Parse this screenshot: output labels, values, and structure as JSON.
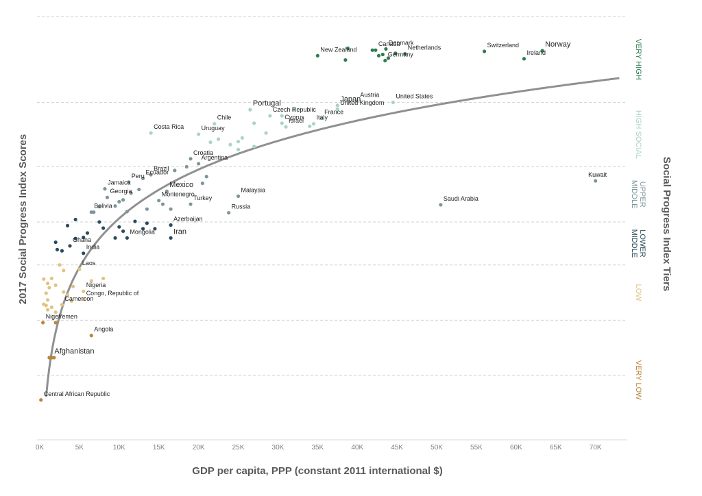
{
  "chart_data": {
    "type": "scatter",
    "xlabel": "GDP per capita, PPP (constant 2011 international  $)",
    "ylabel": "2017 Social Progress Index  Scores",
    "right_title": "Social Progress Index  Tiers",
    "xlim": [
      0,
      74000
    ],
    "ylim": [
      25,
      95
    ],
    "x_ticks": [
      0,
      5000,
      10000,
      15000,
      20000,
      25000,
      30000,
      35000,
      40000,
      45000,
      50000,
      55000,
      60000,
      65000,
      70000
    ],
    "x_tick_labels": [
      "0K",
      "5K",
      "10K",
      "15K",
      "20K",
      "25K",
      "30K",
      "35K",
      "40K",
      "45K",
      "50K",
      "55K",
      "60K",
      "65K",
      "70K"
    ],
    "grid": "horizontal dashed lines at tier boundaries",
    "tier_boundaries": [
      35.5,
      44.5,
      53.5,
      60.5,
      69.5,
      80,
      94
    ],
    "tiers": [
      {
        "name": "VERY HIGH",
        "lines": [
          "VERY HIGH"
        ],
        "color": "#2e7d4f",
        "y_from": 80,
        "y_to": 94
      },
      {
        "name": "HIGH SOCIAL",
        "lines": [
          "HIGH SOCIAL"
        ],
        "color": "#a8d5c2",
        "y_from": 69.5,
        "y_to": 80
      },
      {
        "name": "UPPER MIDDLE",
        "lines": [
          "UPPER",
          "MIDDLE"
        ],
        "color": "#7f949c",
        "y_from": 60.5,
        "y_to": 69.5
      },
      {
        "name": "LOWER MIDDLE",
        "lines": [
          "LOWER",
          "MIDDLE"
        ],
        "color": "#2b4a5a",
        "y_from": 53.5,
        "y_to": 60.5
      },
      {
        "name": "LOW",
        "lines": [
          "LOW"
        ],
        "color": "#e0c384",
        "y_from": 44.5,
        "y_to": 53.5
      },
      {
        "name": "VERY LOW",
        "lines": [
          "VERY LOW"
        ],
        "color": "#b8863b",
        "y_from": 25,
        "y_to": 44.5
      }
    ],
    "trend_curve": {
      "type": "logarithmic",
      "color": "#909090",
      "points": [
        [
          800,
          33.5
        ],
        [
          2000,
          45
        ],
        [
          5000,
          57
        ],
        [
          10000,
          64.5
        ],
        [
          20000,
          72
        ],
        [
          30000,
          76.5
        ],
        [
          45000,
          81
        ],
        [
          60000,
          84
        ],
        [
          73000,
          86.5
        ]
      ]
    },
    "series": [
      {
        "tier": "VERY HIGH",
        "color": "#2e7d4f",
        "points": [
          {
            "x": 63300,
            "y": 88.4,
            "label": "Norway"
          },
          {
            "x": 43600,
            "y": 88.7,
            "label": "Denmark"
          },
          {
            "x": 46000,
            "y": 87.9,
            "label": "Netherlands"
          },
          {
            "x": 56000,
            "y": 88.3,
            "label": "Switzerland"
          },
          {
            "x": 61000,
            "y": 87.1,
            "label": "Ireland"
          },
          {
            "x": 35000,
            "y": 87.6,
            "label": "New Zealand"
          },
          {
            "x": 43500,
            "y": 86.8,
            "label": "Germany"
          },
          {
            "x": 42300,
            "y": 88.5,
            "label": "Canada"
          },
          {
            "x": 38800,
            "y": 88.8,
            "label": ""
          },
          {
            "x": 41900,
            "y": 88.5,
            "label": ""
          },
          {
            "x": 44800,
            "y": 88.0,
            "label": ""
          },
          {
            "x": 43200,
            "y": 87.8,
            "label": ""
          },
          {
            "x": 43900,
            "y": 87.2,
            "label": ""
          },
          {
            "x": 38500,
            "y": 86.9,
            "label": ""
          },
          {
            "x": 42700,
            "y": 87.6,
            "label": ""
          }
        ]
      },
      {
        "tier": "HIGH SOCIAL",
        "color": "#a8d5c2",
        "points": [
          {
            "x": 26500,
            "y": 78.8,
            "label": "Portugal"
          },
          {
            "x": 29000,
            "y": 77.8,
            "label": "Czech Republic"
          },
          {
            "x": 37500,
            "y": 78.9,
            "label": "United  Kingdom"
          },
          {
            "x": 37500,
            "y": 79.5,
            "label": "Japan"
          },
          {
            "x": 35500,
            "y": 77.4,
            "label": "France"
          },
          {
            "x": 44500,
            "y": 80.0,
            "label": "United  States"
          },
          {
            "x": 40000,
            "y": 80.2,
            "label": "Austria"
          },
          {
            "x": 34500,
            "y": 76.5,
            "label": "Italy"
          },
          {
            "x": 31000,
            "y": 76.0,
            "label": "Israel"
          },
          {
            "x": 22000,
            "y": 76.5,
            "label": "Chile"
          },
          {
            "x": 20000,
            "y": 74.8,
            "label": "Uruguay"
          },
          {
            "x": 30500,
            "y": 76.6,
            "label": "Cyprus"
          },
          {
            "x": 14000,
            "y": 75.0,
            "label": "Costa Rica"
          },
          {
            "x": 30500,
            "y": 77.8,
            "label": ""
          },
          {
            "x": 32000,
            "y": 78.8,
            "label": ""
          },
          {
            "x": 27000,
            "y": 76.6,
            "label": ""
          },
          {
            "x": 28500,
            "y": 75.0,
            "label": ""
          },
          {
            "x": 22500,
            "y": 74.0,
            "label": ""
          },
          {
            "x": 24000,
            "y": 73.1,
            "label": ""
          },
          {
            "x": 25000,
            "y": 73.6,
            "label": ""
          },
          {
            "x": 25500,
            "y": 74.2,
            "label": ""
          },
          {
            "x": 27000,
            "y": 72.8,
            "label": ""
          },
          {
            "x": 25000,
            "y": 72.3,
            "label": ""
          },
          {
            "x": 21500,
            "y": 73.5,
            "label": ""
          },
          {
            "x": 34000,
            "y": 76.1,
            "label": ""
          }
        ]
      },
      {
        "tier": "UPPER MIDDLE",
        "color": "#7f949c",
        "points": [
          {
            "x": 70000,
            "y": 67.2,
            "label": "Kuwait"
          },
          {
            "x": 50500,
            "y": 63.3,
            "label": "Saudi Arabia"
          },
          {
            "x": 25000,
            "y": 64.7,
            "label": "Malaysia"
          },
          {
            "x": 23800,
            "y": 62.0,
            "label": "Russia"
          },
          {
            "x": 19000,
            "y": 63.4,
            "label": "Turkey"
          },
          {
            "x": 16000,
            "y": 65.5,
            "label": "Mexico"
          },
          {
            "x": 15000,
            "y": 64.0,
            "label": "Montenegro"
          },
          {
            "x": 19000,
            "y": 70.8,
            "label": "Croatia"
          },
          {
            "x": 20000,
            "y": 70.0,
            "label": "Argentina"
          },
          {
            "x": 14000,
            "y": 68.2,
            "label": "Brazil"
          },
          {
            "x": 11200,
            "y": 67.0,
            "label": "Peru"
          },
          {
            "x": 8200,
            "y": 65.9,
            "label": "Jamaica"
          },
          {
            "x": 8500,
            "y": 64.5,
            "label": "Georgia"
          },
          {
            "x": 6500,
            "y": 62.1,
            "label": "Bolivia"
          },
          {
            "x": 13000,
            "y": 67.6,
            "label": "Ecuador"
          },
          {
            "x": 17000,
            "y": 68.9,
            "label": ""
          },
          {
            "x": 18500,
            "y": 69.5,
            "label": ""
          },
          {
            "x": 11500,
            "y": 65.2,
            "label": ""
          },
          {
            "x": 10500,
            "y": 64.1,
            "label": ""
          },
          {
            "x": 12500,
            "y": 65.8,
            "label": ""
          },
          {
            "x": 10000,
            "y": 63.8,
            "label": ""
          },
          {
            "x": 13500,
            "y": 62.6,
            "label": ""
          },
          {
            "x": 15500,
            "y": 63.4,
            "label": ""
          },
          {
            "x": 16500,
            "y": 62.6,
            "label": ""
          },
          {
            "x": 11000,
            "y": 62.2,
            "label": ""
          },
          {
            "x": 9500,
            "y": 63.1,
            "label": ""
          },
          {
            "x": 7500,
            "y": 63.0,
            "label": ""
          },
          {
            "x": 6800,
            "y": 62.1,
            "label": ""
          },
          {
            "x": 20500,
            "y": 66.8,
            "label": ""
          },
          {
            "x": 21000,
            "y": 67.9,
            "label": ""
          }
        ]
      },
      {
        "tier": "LOWER MIDDLE",
        "color": "#2b4a5a",
        "points": [
          {
            "x": 16500,
            "y": 57.9,
            "label": "Iran"
          },
          {
            "x": 16500,
            "y": 60.0,
            "label": "Azerbaijan"
          },
          {
            "x": 11000,
            "y": 57.9,
            "label": "Mongolia"
          },
          {
            "x": 3800,
            "y": 56.6,
            "label": "Ghana"
          },
          {
            "x": 5500,
            "y": 55.4,
            "label": "India"
          },
          {
            "x": 2000,
            "y": 57.2,
            "label": ""
          },
          {
            "x": 2200,
            "y": 56.0,
            "label": ""
          },
          {
            "x": 2800,
            "y": 55.8,
            "label": ""
          },
          {
            "x": 4500,
            "y": 57.8,
            "label": ""
          },
          {
            "x": 5500,
            "y": 58.0,
            "label": ""
          },
          {
            "x": 3500,
            "y": 59.9,
            "label": ""
          },
          {
            "x": 4500,
            "y": 60.9,
            "label": ""
          },
          {
            "x": 7500,
            "y": 60.5,
            "label": ""
          },
          {
            "x": 9500,
            "y": 57.9,
            "label": ""
          },
          {
            "x": 10000,
            "y": 59.7,
            "label": ""
          },
          {
            "x": 10500,
            "y": 59.0,
            "label": ""
          },
          {
            "x": 12000,
            "y": 60.6,
            "label": ""
          },
          {
            "x": 13000,
            "y": 59.4,
            "label": ""
          },
          {
            "x": 14500,
            "y": 59.4,
            "label": ""
          },
          {
            "x": 13500,
            "y": 60.3,
            "label": ""
          },
          {
            "x": 8000,
            "y": 59.5,
            "label": ""
          },
          {
            "x": 6000,
            "y": 58.7,
            "label": ""
          }
        ]
      },
      {
        "tier": "LOW",
        "color": "#e0c384",
        "points": [
          {
            "x": 5000,
            "y": 52.8,
            "label": "Laos"
          },
          {
            "x": 5500,
            "y": 49.2,
            "label": "Nigeria"
          },
          {
            "x": 5500,
            "y": 47.9,
            "label": "Congo, Republic of"
          },
          {
            "x": 2800,
            "y": 47.0,
            "label": "Cameroon"
          },
          {
            "x": 8000,
            "y": 51.3,
            "label": ""
          },
          {
            "x": 3000,
            "y": 52.6,
            "label": ""
          },
          {
            "x": 2500,
            "y": 53.5,
            "label": ""
          },
          {
            "x": 1500,
            "y": 51.3,
            "label": ""
          },
          {
            "x": 1000,
            "y": 50.5,
            "label": ""
          },
          {
            "x": 500,
            "y": 51.2,
            "label": ""
          },
          {
            "x": 800,
            "y": 48.9,
            "label": ""
          },
          {
            "x": 1200,
            "y": 49.8,
            "label": ""
          },
          {
            "x": 2000,
            "y": 50.2,
            "label": ""
          },
          {
            "x": 3500,
            "y": 48.6,
            "label": ""
          },
          {
            "x": 1000,
            "y": 47.8,
            "label": ""
          },
          {
            "x": 500,
            "y": 47.1,
            "label": ""
          },
          {
            "x": 1500,
            "y": 46.6,
            "label": ""
          },
          {
            "x": 2000,
            "y": 45.8,
            "label": ""
          },
          {
            "x": 3000,
            "y": 49.1,
            "label": ""
          },
          {
            "x": 4000,
            "y": 47.6,
            "label": ""
          },
          {
            "x": 6500,
            "y": 50.9,
            "label": ""
          },
          {
            "x": 4200,
            "y": 50.0,
            "label": ""
          },
          {
            "x": 1000,
            "y": 46.2,
            "label": ""
          },
          {
            "x": 800,
            "y": 46.9,
            "label": ""
          }
        ]
      },
      {
        "tier": "VERY LOW",
        "color": "#b8863b",
        "points": [
          {
            "x": 2000,
            "y": 44.1,
            "label": "Yemen"
          },
          {
            "x": 400,
            "y": 44.1,
            "label": "Niger"
          },
          {
            "x": 6500,
            "y": 42.0,
            "label": "Angola"
          },
          {
            "x": 1500,
            "y": 38.4,
            "label": "Afghanistan"
          },
          {
            "x": 150,
            "y": 31.5,
            "label": "Central African Republic"
          },
          {
            "x": 1200,
            "y": 38.4,
            "label": ""
          },
          {
            "x": 1800,
            "y": 38.4,
            "label": ""
          }
        ]
      }
    ]
  }
}
